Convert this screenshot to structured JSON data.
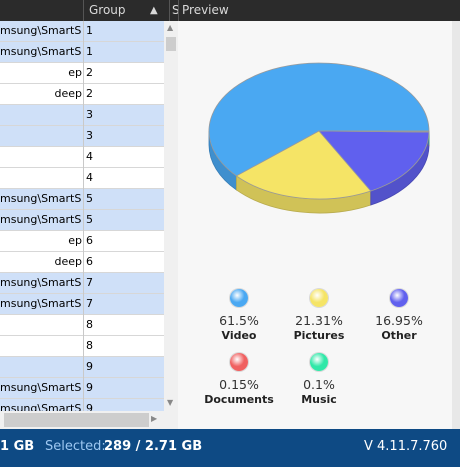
{
  "header": {
    "group_label": "Group",
    "sort_icon": "triangle-up-icon",
    "cut_col_label": "S",
    "preview_label": "Preview"
  },
  "rows": [
    {
      "path": "msung\\SmartS...",
      "group": "1",
      "selected": true
    },
    {
      "path": "msung\\SmartS...",
      "group": "1",
      "selected": true
    },
    {
      "path": "ep",
      "group": "2",
      "selected": false
    },
    {
      "path": "deep",
      "group": "2",
      "selected": false
    },
    {
      "path": "",
      "group": "3",
      "selected": true
    },
    {
      "path": "",
      "group": "3",
      "selected": true
    },
    {
      "path": "",
      "group": "4",
      "selected": false
    },
    {
      "path": "",
      "group": "4",
      "selected": false
    },
    {
      "path": "msung\\SmartS...",
      "group": "5",
      "selected": true
    },
    {
      "path": "msung\\SmartS...",
      "group": "5",
      "selected": true
    },
    {
      "path": "ep",
      "group": "6",
      "selected": false
    },
    {
      "path": "deep",
      "group": "6",
      "selected": false
    },
    {
      "path": "msung\\SmartS...",
      "group": "7",
      "selected": true
    },
    {
      "path": "msung\\SmartS...",
      "group": "7",
      "selected": true
    },
    {
      "path": "",
      "group": "8",
      "selected": false
    },
    {
      "path": "",
      "group": "8",
      "selected": false
    },
    {
      "path": "",
      "group": "9",
      "selected": true
    },
    {
      "path": "msung\\SmartS...",
      "group": "9",
      "selected": true
    },
    {
      "path": "msung\\SmartS...",
      "group": "9",
      "selected": true
    }
  ],
  "chart_data": {
    "type": "pie",
    "slices": [
      {
        "label": "Video",
        "value": 61.5,
        "pct_label": "61.5%",
        "color": "#4aa8f2"
      },
      {
        "label": "Pictures",
        "value": 21.31,
        "pct_label": "21.31%",
        "color": "#f5e466"
      },
      {
        "label": "Other",
        "value": 16.95,
        "pct_label": "16.95%",
        "color": "#6060ee"
      },
      {
        "label": "Documents",
        "value": 0.15,
        "pct_label": "0.15%",
        "color": "#f06060"
      },
      {
        "label": "Music",
        "value": 0.1,
        "pct_label": "0.1%",
        "color": "#30e8a8"
      }
    ]
  },
  "status": {
    "left_fragment": "1 GB",
    "selected_label": "Selected:",
    "selected_value": "289 / 2.71 GB",
    "version": "V 4.11.7.760"
  }
}
